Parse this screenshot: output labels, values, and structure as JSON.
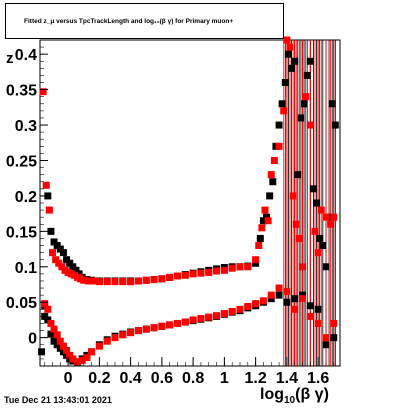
{
  "title": "Fitted  z_μ  versus TpcTrackLength and log₁₀(β γ) for Primary muon+",
  "y_label": "z",
  "x_label_main": "log",
  "x_label_sub": "10",
  "x_label_rest": "(β γ)",
  "datestamp": "Tue Dec 21 13:43:01 2021",
  "chart_data": {
    "type": "scatter",
    "title": "Fitted z_μ versus TpcTrackLength and log10(βγ) for Primary muon+",
    "xlabel": "log10(β γ)",
    "ylabel": "z",
    "xlim": [
      -0.18,
      1.74
    ],
    "ylim": [
      -0.04,
      0.42
    ],
    "x_ticks": [
      0,
      0.2,
      0.4,
      0.6,
      0.8,
      1,
      1.2,
      1.4,
      1.6
    ],
    "x_tick_labels": [
      "0",
      "0.2",
      "0.4",
      "0.6",
      "0.8",
      "1",
      "1.2",
      "1.4",
      "1.6"
    ],
    "y_ticks": [
      0,
      0.05,
      0.1,
      0.15,
      0.2,
      0.25,
      0.3,
      0.35,
      0.4
    ],
    "y_tick_labels": [
      "0",
      "0.05",
      "0.1",
      "0.15",
      "0.2",
      "0.25",
      "0.3",
      "0.35",
      "0.4"
    ],
    "colors": {
      "black": "#000000",
      "red": "#ff0000"
    },
    "series": [
      {
        "color": "#000000",
        "marker": "square",
        "points": [
          [
            -0.17,
            -0.02
          ],
          [
            -0.15,
            0.03
          ],
          [
            -0.13,
            0.2
          ],
          [
            -0.11,
            0.15
          ],
          [
            -0.09,
            0.135
          ],
          [
            -0.07,
            0.13
          ],
          [
            -0.05,
            0.125
          ],
          [
            -0.03,
            0.12
          ],
          [
            -0.01,
            0.11
          ],
          [
            0.01,
            0.105
          ],
          [
            0.03,
            0.1
          ],
          [
            0.05,
            0.095
          ],
          [
            0.07,
            0.09
          ],
          [
            0.09,
            0.085
          ],
          [
            0.12,
            0.082
          ],
          [
            0.15,
            0.081
          ],
          [
            0.2,
            0.08
          ],
          [
            0.25,
            0.08
          ],
          [
            0.3,
            0.08
          ],
          [
            0.35,
            0.08
          ],
          [
            0.4,
            0.08
          ],
          [
            0.45,
            0.08
          ],
          [
            0.5,
            0.081
          ],
          [
            0.55,
            0.082
          ],
          [
            0.6,
            0.083
          ],
          [
            0.65,
            0.085
          ],
          [
            0.7,
            0.087
          ],
          [
            0.75,
            0.089
          ],
          [
            0.8,
            0.091
          ],
          [
            0.85,
            0.093
          ],
          [
            0.9,
            0.095
          ],
          [
            0.95,
            0.097
          ],
          [
            1.0,
            0.099
          ],
          [
            1.05,
            0.1
          ],
          [
            1.1,
            0.1
          ],
          [
            1.15,
            0.101
          ],
          [
            1.2,
            0.105
          ],
          [
            1.23,
            0.14
          ],
          [
            1.25,
            0.165
          ],
          [
            1.27,
            0.17
          ],
          [
            1.29,
            0.2
          ],
          [
            1.31,
            0.22
          ],
          [
            1.33,
            0.27
          ],
          [
            1.35,
            0.3
          ],
          [
            1.37,
            0.33
          ],
          [
            1.39,
            0.36
          ],
          [
            1.41,
            0.4
          ],
          [
            1.43,
            0.38
          ],
          [
            1.45,
            0.39
          ],
          [
            1.47,
            0.23
          ],
          [
            1.49,
            0.31
          ],
          [
            1.51,
            0.33
          ],
          [
            1.53,
            0.37
          ],
          [
            1.55,
            0.39
          ],
          [
            1.57,
            0.21
          ],
          [
            1.59,
            0.19
          ],
          [
            1.61,
            0.14
          ],
          [
            1.63,
            0.13
          ],
          [
            1.65,
            0.1
          ],
          [
            1.67,
            0.17
          ],
          [
            1.69,
            0.33
          ],
          [
            1.71,
            0.3
          ],
          [
            -0.15,
            0.045
          ],
          [
            -0.13,
            0.025
          ],
          [
            -0.11,
            0.005
          ],
          [
            -0.09,
            -0.005
          ],
          [
            -0.07,
            -0.01
          ],
          [
            -0.05,
            -0.015
          ],
          [
            -0.03,
            -0.02
          ],
          [
            -0.01,
            -0.025
          ],
          [
            0.01,
            -0.03
          ],
          [
            0.03,
            -0.033
          ],
          [
            0.06,
            -0.035
          ],
          [
            0.09,
            -0.03
          ],
          [
            0.12,
            -0.025
          ],
          [
            0.15,
            -0.02
          ],
          [
            0.2,
            -0.01
          ],
          [
            0.25,
            -0.003
          ],
          [
            0.3,
            0.002
          ],
          [
            0.35,
            0.005
          ],
          [
            0.4,
            0.008
          ],
          [
            0.45,
            0.01
          ],
          [
            0.5,
            0.012
          ],
          [
            0.55,
            0.014
          ],
          [
            0.6,
            0.016
          ],
          [
            0.65,
            0.018
          ],
          [
            0.7,
            0.02
          ],
          [
            0.75,
            0.022
          ],
          [
            0.8,
            0.024
          ],
          [
            0.85,
            0.026
          ],
          [
            0.9,
            0.028
          ],
          [
            0.95,
            0.03
          ],
          [
            1.0,
            0.033
          ],
          [
            1.05,
            0.036
          ],
          [
            1.1,
            0.038
          ],
          [
            1.15,
            0.042
          ],
          [
            1.2,
            0.045
          ],
          [
            1.25,
            0.05
          ],
          [
            1.3,
            0.055
          ],
          [
            1.35,
            0.06
          ],
          [
            1.4,
            0.05
          ],
          [
            1.45,
            0.055
          ],
          [
            1.5,
            0.06
          ],
          [
            1.55,
            0.045
          ],
          [
            1.6,
            0.04
          ],
          [
            1.65,
            -0.01
          ],
          [
            1.7,
            0.0
          ]
        ]
      },
      {
        "color": "#ff0000",
        "marker": "square",
        "points": [
          [
            -0.16,
            0.347
          ],
          [
            -0.14,
            0.215
          ],
          [
            -0.12,
            0.18
          ],
          [
            -0.1,
            0.12
          ],
          [
            -0.08,
            0.11
          ],
          [
            -0.06,
            0.105
          ],
          [
            -0.04,
            0.1
          ],
          [
            -0.02,
            0.095
          ],
          [
            0.0,
            0.092
          ],
          [
            0.02,
            0.09
          ],
          [
            0.04,
            0.088
          ],
          [
            0.06,
            0.085
          ],
          [
            0.08,
            0.083
          ],
          [
            0.1,
            0.081
          ],
          [
            0.13,
            0.08
          ],
          [
            0.16,
            0.08
          ],
          [
            0.2,
            0.079
          ],
          [
            0.25,
            0.079
          ],
          [
            0.3,
            0.079
          ],
          [
            0.35,
            0.079
          ],
          [
            0.4,
            0.079
          ],
          [
            0.45,
            0.08
          ],
          [
            0.5,
            0.081
          ],
          [
            0.55,
            0.082
          ],
          [
            0.6,
            0.083
          ],
          [
            0.65,
            0.085
          ],
          [
            0.7,
            0.087
          ],
          [
            0.75,
            0.088
          ],
          [
            0.8,
            0.09
          ],
          [
            0.85,
            0.091
          ],
          [
            0.9,
            0.092
          ],
          [
            0.95,
            0.094
          ],
          [
            1.0,
            0.095
          ],
          [
            1.05,
            0.098
          ],
          [
            1.1,
            0.1
          ],
          [
            1.15,
            0.1
          ],
          [
            1.2,
            0.11
          ],
          [
            1.22,
            0.13
          ],
          [
            1.24,
            0.155
          ],
          [
            1.26,
            0.18
          ],
          [
            1.28,
            0.165
          ],
          [
            1.3,
            0.23
          ],
          [
            1.32,
            0.25
          ],
          [
            1.35,
            0.27
          ],
          [
            1.38,
            0.32
          ],
          [
            1.4,
            0.42
          ],
          [
            1.42,
            0.41
          ],
          [
            1.44,
            0.2
          ],
          [
            1.46,
            0.16
          ],
          [
            1.48,
            0.14
          ],
          [
            1.5,
            0.1
          ],
          [
            1.52,
            0.34
          ],
          [
            1.55,
            0.3
          ],
          [
            1.58,
            0.15
          ],
          [
            1.6,
            0.12
          ],
          [
            1.62,
            0.18
          ],
          [
            1.65,
            0.17
          ],
          [
            1.68,
            0.16
          ],
          [
            1.7,
            0.17
          ],
          [
            -0.15,
            0.048
          ],
          [
            -0.13,
            0.04
          ],
          [
            -0.11,
            0.02
          ],
          [
            -0.09,
            0.012
          ],
          [
            -0.07,
            0.004
          ],
          [
            -0.05,
            -0.005
          ],
          [
            -0.03,
            -0.012
          ],
          [
            -0.01,
            -0.018
          ],
          [
            0.01,
            -0.025
          ],
          [
            0.03,
            -0.03
          ],
          [
            0.06,
            -0.034
          ],
          [
            0.09,
            -0.032
          ],
          [
            0.12,
            -0.028
          ],
          [
            0.15,
            -0.02
          ],
          [
            0.2,
            -0.012
          ],
          [
            0.25,
            -0.005
          ],
          [
            0.3,
            0.0
          ],
          [
            0.35,
            0.004
          ],
          [
            0.4,
            0.007
          ],
          [
            0.45,
            0.01
          ],
          [
            0.5,
            0.012
          ],
          [
            0.55,
            0.014
          ],
          [
            0.6,
            0.016
          ],
          [
            0.65,
            0.018
          ],
          [
            0.7,
            0.02
          ],
          [
            0.75,
            0.022
          ],
          [
            0.8,
            0.025
          ],
          [
            0.85,
            0.027
          ],
          [
            0.9,
            0.029
          ],
          [
            0.95,
            0.031
          ],
          [
            1.0,
            0.034
          ],
          [
            1.05,
            0.037
          ],
          [
            1.1,
            0.04
          ],
          [
            1.15,
            0.044
          ],
          [
            1.2,
            0.048
          ],
          [
            1.25,
            0.052
          ],
          [
            1.3,
            0.06
          ],
          [
            1.35,
            0.07
          ],
          [
            1.4,
            0.065
          ],
          [
            1.45,
            0.04
          ],
          [
            1.5,
            0.055
          ],
          [
            1.55,
            0.03
          ],
          [
            1.6,
            0.02
          ],
          [
            1.65,
            0.0
          ],
          [
            1.7,
            0.02
          ]
        ]
      }
    ]
  }
}
